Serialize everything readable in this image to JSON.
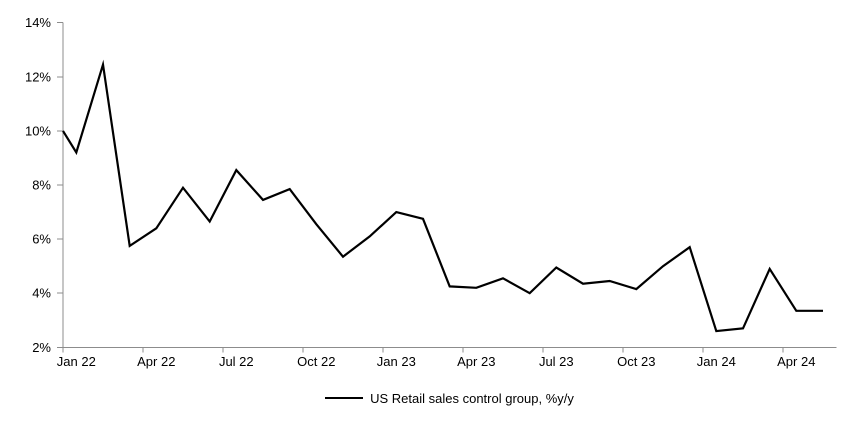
{
  "figure": {
    "background": "#ffffff",
    "text_color": "#000000"
  },
  "chart_data": {
    "type": "line",
    "title": "",
    "grid": false,
    "axis_color": "#8c8c8c",
    "legend": {
      "position": "bottom-center",
      "label": "US Retail sales control group, %y/y"
    },
    "x": [
      "Jan 22",
      "Feb 22",
      "Mar 22",
      "Apr 22",
      "May 22",
      "Jun 22",
      "Jul 22",
      "Aug 22",
      "Sep 22",
      "Oct 22",
      "Nov 22",
      "Dec 22",
      "Jan 23",
      "Feb 23",
      "Mar 23",
      "Apr 23",
      "May 23",
      "Jun 23",
      "Jul 23",
      "Aug 23",
      "Sep 23",
      "Oct 23",
      "Nov 23",
      "Dec 23",
      "Jan 24",
      "Feb 24",
      "Mar 24",
      "Apr 24",
      "May 24"
    ],
    "series": [
      {
        "name": "US Retail sales control group, %y/y",
        "color": "#000000",
        "line_width": 2.2,
        "values": [
          9.2,
          12.45,
          5.75,
          6.4,
          7.9,
          6.65,
          8.55,
          7.45,
          7.85,
          6.55,
          5.35,
          6.1,
          7.0,
          6.75,
          4.25,
          4.2,
          4.55,
          4.0,
          4.95,
          4.35,
          4.45,
          4.15,
          5.0,
          5.7,
          2.6,
          2.7,
          4.9,
          3.35,
          3.35
        ]
      }
    ],
    "clipped_entry": {
      "note": "series line enters the plot clipped at the left axis, descending toward Jan 22",
      "value_at_left_axis": 10.0
    },
    "y_axis": {
      "min": 2,
      "max": 14,
      "tick_step": 2,
      "tick_labels": [
        "2%",
        "4%",
        "6%",
        "8%",
        "10%",
        "12%",
        "14%"
      ]
    },
    "x_axis": {
      "tick_every_months": 3,
      "tick_labels": [
        "Jan 22",
        "Apr 22",
        "Jul 22",
        "Oct 22",
        "Jan 23",
        "Apr 23",
        "Jul 23",
        "Oct 23",
        "Jan 24",
        "Apr 24"
      ]
    }
  }
}
